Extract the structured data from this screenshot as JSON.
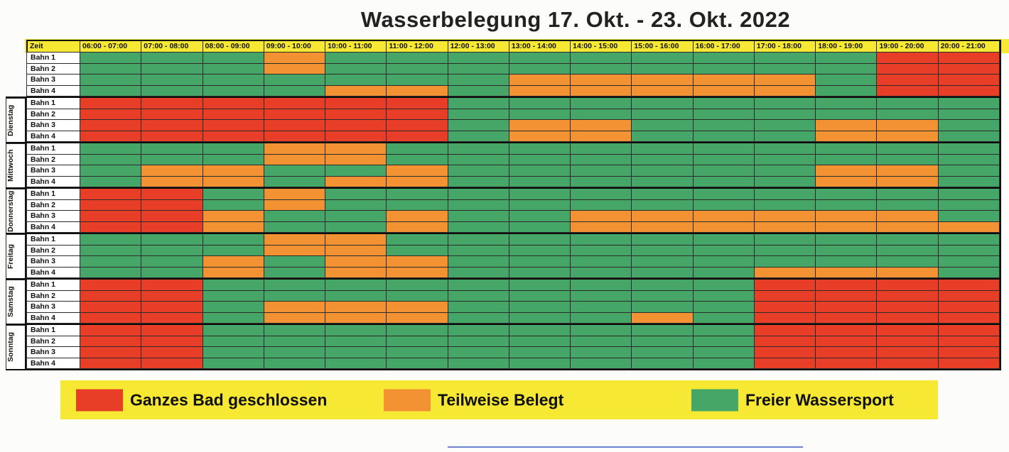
{
  "title": "Wasserbelegung 17. Okt. - 23. Okt. 2022",
  "header": {
    "zeit_label": "Zeit"
  },
  "legend": [
    {
      "label": "Ganzes Bad geschlossen",
      "status": "closed"
    },
    {
      "label": "Teilweise Belegt",
      "status": "partial"
    },
    {
      "label": "Freier Wassersport",
      "status": "free"
    }
  ],
  "colors": {
    "closed": "#e83e28",
    "partial": "#f29233",
    "free": "#46a667",
    "band": "#f6e833"
  },
  "chart_data": {
    "type": "heatmap",
    "title": "Wasserbelegung 17. Okt. - 23. Okt. 2022",
    "x_labels": [
      "06:00 - 07:00",
      "07:00 - 08:00",
      "08:00 - 09:00",
      "09:00 - 10:00",
      "10:00 - 11:00",
      "11:00 - 12:00",
      "12:00 - 13:00",
      "13:00 - 14:00",
      "14:00 - 15:00",
      "15:00 - 16:00",
      "16:00 - 17:00",
      "17:00 - 18:00",
      "18:00 - 19:00",
      "19:00 - 20:00",
      "20:00 - 21:00"
    ],
    "status_map": {
      "R": "closed",
      "O": "partial",
      "G": "free"
    },
    "status_labels": {
      "R": "Ganzes Bad geschlossen",
      "O": "Teilweise Belegt",
      "G": "Freier Wassersport"
    },
    "days": [
      {
        "label": "",
        "lanes": [
          {
            "label": "Bahn 1",
            "cells": "GGGOGGGGGGGGGRR"
          },
          {
            "label": "Bahn 2",
            "cells": "GGGOGGGGGGGGGRR"
          },
          {
            "label": "Bahn 3",
            "cells": "GGGGGGGOOOOOGRR"
          },
          {
            "label": "Bahn 4",
            "cells": "GGGGOOGOOOOOGRR"
          }
        ]
      },
      {
        "label": "Dienstag",
        "lanes": [
          {
            "label": "Bahn 1",
            "cells": "RRRRRRGGGGGGGGG"
          },
          {
            "label": "Bahn 2",
            "cells": "RRRRRRGGGGGGGGG"
          },
          {
            "label": "Bahn 3",
            "cells": "RRRRRRGOOGGGOOG"
          },
          {
            "label": "Bahn 4",
            "cells": "RRRRRRGOOGGGOOG"
          }
        ]
      },
      {
        "label": "Mittwoch",
        "lanes": [
          {
            "label": "Bahn 1",
            "cells": "GGGOOGGGGGGGGGG"
          },
          {
            "label": "Bahn 2",
            "cells": "GGGOOGGGGGGGGGG"
          },
          {
            "label": "Bahn 3",
            "cells": "GOOGGOGGGGGGOOG"
          },
          {
            "label": "Bahn 4",
            "cells": "GOOGOOGGGGGGOOG"
          }
        ]
      },
      {
        "label": "Donnerstag",
        "lanes": [
          {
            "label": "Bahn 1",
            "cells": "RRGOGGGGGGGGGGG"
          },
          {
            "label": "Bahn 2",
            "cells": "RRGOGGGGGGGGGGG"
          },
          {
            "label": "Bahn 3",
            "cells": "RROGGOGGOOOOOOG"
          },
          {
            "label": "Bahn 4",
            "cells": "RROGGOGGOOOOOOO"
          }
        ]
      },
      {
        "label": "Freitag",
        "lanes": [
          {
            "label": "Bahn 1",
            "cells": "GGGOOGGGGGGGGGG"
          },
          {
            "label": "Bahn 2",
            "cells": "GGGOOGGGGGGGGGG"
          },
          {
            "label": "Bahn 3",
            "cells": "GGOGOOGGGGGGGGG"
          },
          {
            "label": "Bahn 4",
            "cells": "GGOGOOGGGGGOOOG"
          }
        ]
      },
      {
        "label": "Samstag",
        "lanes": [
          {
            "label": "Bahn 1",
            "cells": "RRGGGGGGGGGRRRR"
          },
          {
            "label": "Bahn 2",
            "cells": "RRGGGGGGGGGRRRR"
          },
          {
            "label": "Bahn 3",
            "cells": "RRGOOOGGGGGRRRR"
          },
          {
            "label": "Bahn 4",
            "cells": "RRGOOOGGGOGRRRR"
          }
        ]
      },
      {
        "label": "Sonntag",
        "lanes": [
          {
            "label": "Bahn 1",
            "cells": "RRGGGGGGGGGRRRR"
          },
          {
            "label": "Bahn 2",
            "cells": "RRGGGGGGGGGRRRR"
          },
          {
            "label": "Bahn 3",
            "cells": "RRGGGGGGGGGRRRR"
          },
          {
            "label": "Bahn 4",
            "cells": "RRGGGGGGGGGRRRR"
          }
        ]
      }
    ]
  }
}
